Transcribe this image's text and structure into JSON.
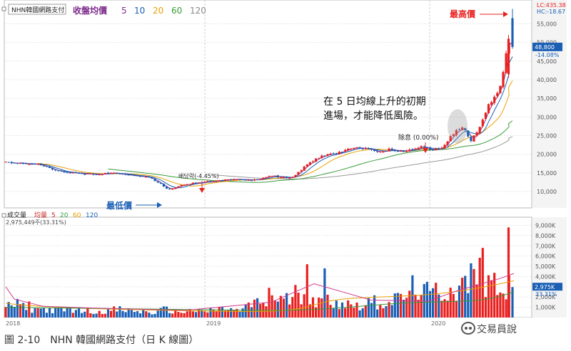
{
  "figure": {
    "caption": "圖 2-10　NHN 韓國網路支付（日 K 線圖）",
    "watermark": "交易員說"
  },
  "chart_data": {
    "type": "candlestick",
    "title": {
      "tag": "NHN韓國網路支付",
      "ma_label": "收盤均價",
      "ma_periods": [
        {
          "label": "5",
          "color": "#7b2a8b"
        },
        {
          "label": "10",
          "color": "#1a5fb4"
        },
        {
          "label": "20",
          "color": "#e8a000"
        },
        {
          "label": "60",
          "color": "#3a9a3a"
        },
        {
          "label": "120",
          "color": "#888888"
        }
      ]
    },
    "price_panel": {
      "y_ticks": [
        "10,000",
        "15,000",
        "20,000",
        "25,000",
        "30,000",
        "35,000",
        "40,000",
        "45,000",
        "50,000",
        "55,000"
      ],
      "y_tick_values": [
        10000,
        15000,
        20000,
        25000,
        30000,
        35000,
        40000,
        45000,
        50000,
        55000
      ],
      "ylim": [
        6000,
        61000
      ],
      "top_labels": {
        "lc": "LC:435.38",
        "hc": "HC:-18.67"
      },
      "last_price": {
        "label": "48,800",
        "value": 48800,
        "change": "-14.08%"
      }
    },
    "volume_panel": {
      "title_box": "成交量",
      "title_prefix": "均量",
      "ma_periods": [
        {
          "label": "5",
          "color": "#cc2222"
        },
        {
          "label": "20",
          "color": "#3a9a3a"
        },
        {
          "label": "60",
          "color": "#e8a000"
        },
        {
          "label": "120",
          "color": "#1a5fb4"
        }
      ],
      "info": "2,975,449주(33.31%)",
      "y_ticks": [
        "1,000K",
        "2,000K",
        "3,000K",
        "4,000K",
        "5,000K",
        "6,000K",
        "7,000K",
        "8,000K",
        "9,000K"
      ],
      "y_tick_values": [
        1000,
        2000,
        3000,
        4000,
        5000,
        6000,
        7000,
        8000,
        9000
      ],
      "ylim": [
        0,
        9800
      ],
      "last_value": {
        "label": "2,975K",
        "pct": "33.31%",
        "value": 2975
      }
    },
    "x_labels": [
      "2018",
      "2019",
      "2020"
    ],
    "annotations": {
      "high_label": "最高價",
      "low_label": "最低價",
      "dividend_1": "배당락(-4.45%)",
      "dividend_2": "除息 (0.00%)",
      "note_line1": "在 5 日均線上升的初期",
      "note_line2": "進場，才能降低風險。"
    },
    "colors": {
      "up": "#e8201f",
      "down": "#1a5fb4",
      "annotation_red": "#e8201f",
      "annotation_blue": "#1a5fb4"
    },
    "legend": "top-left",
    "grid": true
  }
}
